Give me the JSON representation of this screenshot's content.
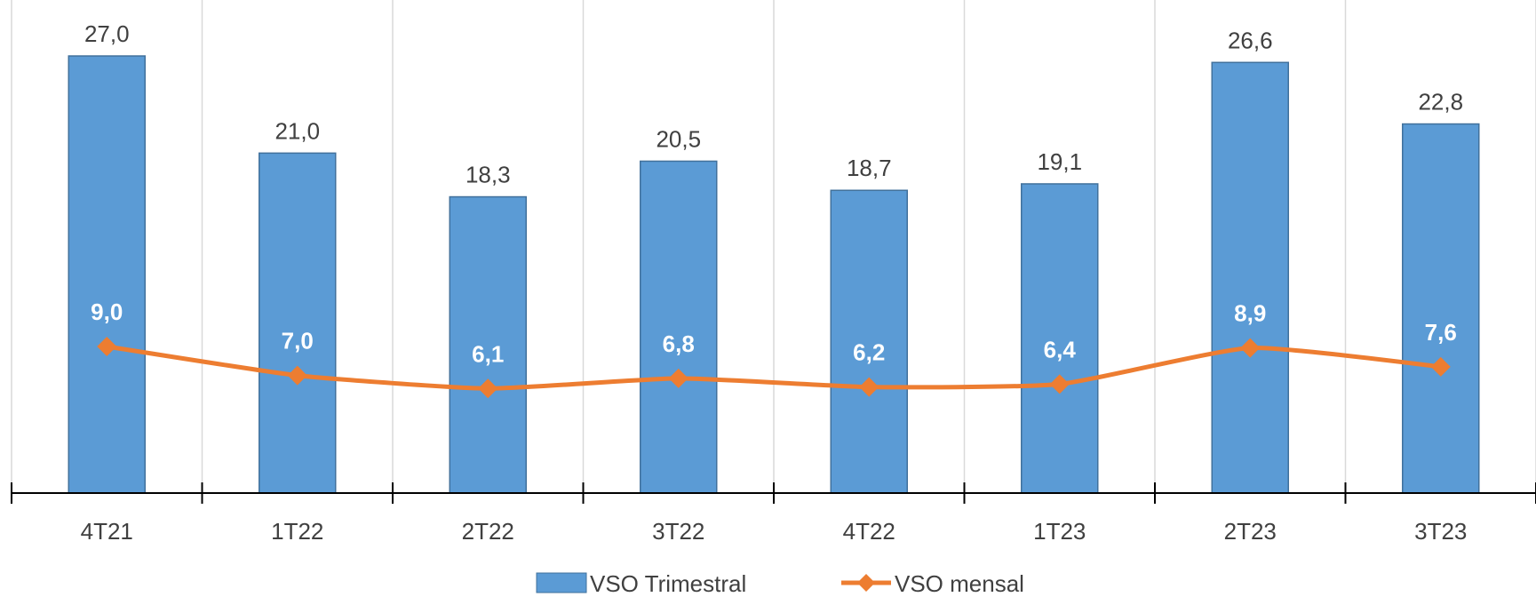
{
  "chart_data": {
    "type": "bar",
    "categories": [
      "4T21",
      "1T22",
      "2T22",
      "3T22",
      "4T22",
      "1T23",
      "2T23",
      "3T23"
    ],
    "series": [
      {
        "name": "VSO Trimestral",
        "type": "bar",
        "color": "#5B9BD5",
        "values": [
          27.0,
          21.0,
          18.3,
          20.5,
          18.7,
          19.1,
          26.6,
          22.8
        ],
        "labels": [
          "27,0",
          "21,0",
          "18,3",
          "20,5",
          "18,7",
          "19,1",
          "26,6",
          "22,8"
        ]
      },
      {
        "name": "VSO mensal",
        "type": "line",
        "smooth": true,
        "marker": "diamond",
        "color": "#ED7D31",
        "values": [
          9.0,
          7.0,
          6.1,
          6.8,
          6.2,
          6.4,
          8.9,
          7.6
        ],
        "labels": [
          "9,0",
          "7,0",
          "6,1",
          "6,8",
          "6,2",
          "6,4",
          "8,9",
          "7,6"
        ]
      }
    ],
    "ylim": [
      0,
      30
    ],
    "grid": "vertical",
    "legend": "bottom",
    "title": "",
    "xlabel": "",
    "ylabel": ""
  }
}
